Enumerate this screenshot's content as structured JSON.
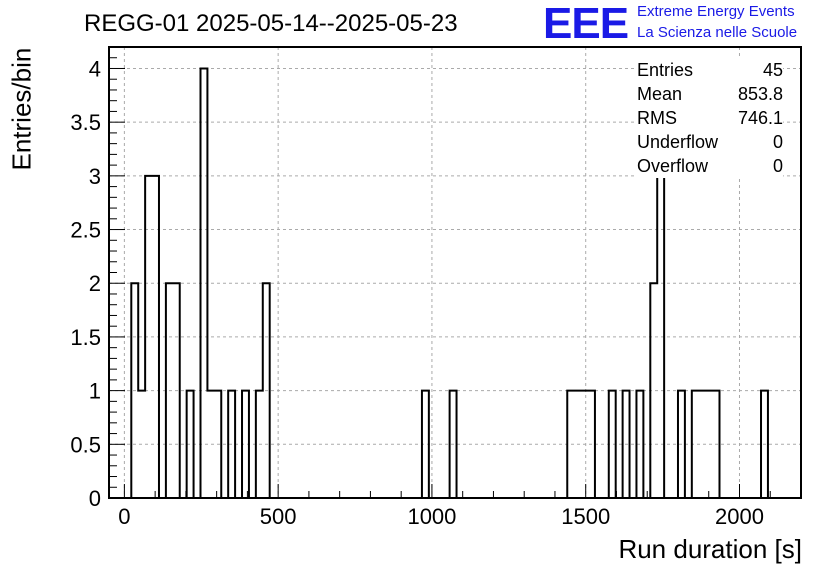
{
  "chart_data": {
    "type": "histogram",
    "title": "REGG-01 2025-05-14--2025-05-23",
    "xlabel": "Run duration [s]",
    "ylabel": "Entries/bin",
    "xlim": [
      -50,
      2200
    ],
    "ylim": [
      0,
      4.2
    ],
    "x_ticks": [
      "0",
      "500",
      "1000",
      "1500",
      "2000"
    ],
    "y_ticks": [
      "0",
      "0.5",
      "1",
      "1.5",
      "2",
      "2.5",
      "3",
      "3.5",
      "4"
    ],
    "grid": true,
    "bin_width": 22.5,
    "bins": [
      {
        "x_low": 22.5,
        "count": 2
      },
      {
        "x_low": 45,
        "count": 1
      },
      {
        "x_low": 67.5,
        "count": 3
      },
      {
        "x_low": 90,
        "count": 3
      },
      {
        "x_low": 135,
        "count": 2
      },
      {
        "x_low": 157.5,
        "count": 2
      },
      {
        "x_low": 202.5,
        "count": 1
      },
      {
        "x_low": 247.5,
        "count": 4
      },
      {
        "x_low": 270,
        "count": 1
      },
      {
        "x_low": 292.5,
        "count": 1
      },
      {
        "x_low": 337.5,
        "count": 1
      },
      {
        "x_low": 382.5,
        "count": 1
      },
      {
        "x_low": 427.5,
        "count": 1
      },
      {
        "x_low": 450,
        "count": 2
      },
      {
        "x_low": 967.5,
        "count": 1
      },
      {
        "x_low": 1057.5,
        "count": 1
      },
      {
        "x_low": 1440,
        "count": 1
      },
      {
        "x_low": 1462.5,
        "count": 1
      },
      {
        "x_low": 1485,
        "count": 1
      },
      {
        "x_low": 1507.5,
        "count": 1
      },
      {
        "x_low": 1575,
        "count": 1
      },
      {
        "x_low": 1620,
        "count": 1
      },
      {
        "x_low": 1665,
        "count": 1
      },
      {
        "x_low": 1710,
        "count": 2
      },
      {
        "x_low": 1732.5,
        "count": 3
      },
      {
        "x_low": 1800,
        "count": 1
      },
      {
        "x_low": 1845,
        "count": 1
      },
      {
        "x_low": 1867.5,
        "count": 1
      },
      {
        "x_low": 1890,
        "count": 1
      },
      {
        "x_low": 1912.5,
        "count": 1
      },
      {
        "x_low": 2070,
        "count": 1
      }
    ]
  },
  "stats": [
    {
      "label": "Entries",
      "value": "45"
    },
    {
      "label": "Mean",
      "value": "853.8"
    },
    {
      "label": "RMS",
      "value": "746.1"
    },
    {
      "label": "Underflow",
      "value": "0"
    },
    {
      "label": "Overflow",
      "value": "0"
    }
  ],
  "logo": {
    "mark": "EEE",
    "line1": "Extreme Energy Events",
    "line2": "La Scienza nelle Scuole",
    "color": "#1a1ae6"
  }
}
